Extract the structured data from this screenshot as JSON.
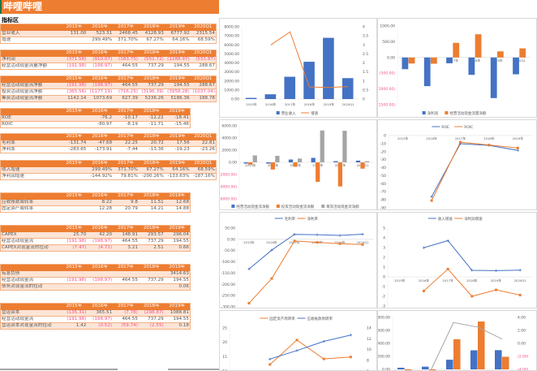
{
  "title": "哔哩哔哩",
  "section": "指标区",
  "colors": {
    "accent": "#ED7D31",
    "blue": "#4472C4",
    "orange": "#ED7D31",
    "gray": "#A5A5A5",
    "negative": "#F0508A"
  },
  "tables": [
    {
      "years": [
        "2015年",
        "2016年",
        "2017年",
        "2018年",
        "2019年",
        "2020Q1"
      ],
      "rows": [
        [
          "营业收入",
          "131.00",
          "523.31",
          "2468.45",
          "4128.93",
          "6777.92",
          "2315.54"
        ],
        [
          "增速",
          "",
          "299.49%",
          "371.70%",
          "67.27%",
          "64.16%",
          "68.59%"
        ]
      ]
    },
    {
      "years": [
        "2015年",
        "2016年",
        "2017年",
        "2018年",
        "2019年",
        "2020Q1"
      ],
      "rows": [
        [
          "净利润",
          "(371.58)",
          "(910.07)",
          "(183.75)",
          "(551.72)",
          "(1288.97)",
          "(533.87)"
        ],
        [
          "经营活动现金流量净额",
          "(191.98)",
          "(198.97)",
          "464.55",
          "737.29",
          "194.55",
          "288.67"
        ]
      ]
    },
    {
      "years": [
        "2015年",
        "2016年",
        "2017年",
        "2018年",
        "2019年",
        "2020Q1"
      ],
      "rows": [
        [
          "经营活动现金流净额",
          "(191.98)",
          "(198.97)",
          "464.55",
          "737.29",
          "194.55",
          "288.67"
        ],
        [
          "投资活动现金流净额",
          "(365.56)",
          "(1177.19)",
          "(716.25)",
          "(3196.39)",
          "(3958.28)",
          "(1037.04)"
        ],
        [
          "筹资活动现金流净额",
          "1142.14",
          "1073.69",
          "627.39",
          "5236.26",
          "5186.36",
          "188.78"
        ]
      ]
    },
    {
      "years": [
        "2015年",
        "2016年",
        "2017年",
        "2018年",
        "2019年"
      ],
      "rows": [
        [
          "ROE",
          "",
          "-76.2",
          "-10.17",
          "-12.22",
          "-18.41"
        ],
        [
          "ROIC",
          "",
          "-80.97",
          "-8.19",
          "-11.71",
          "-15.46"
        ]
      ]
    },
    {
      "years": [
        "2015年",
        "2016年",
        "2017年",
        "2018年",
        "2019年",
        "2020Q1"
      ],
      "rows": [
        [
          "毛利率",
          "-131.74",
          "-47.68",
          "22.25",
          "20.72",
          "17.56",
          "22.81"
        ],
        [
          "净利率",
          "-283.65",
          "-173.91",
          "-7.44",
          "-13.36",
          "-19.23",
          "-23.26"
        ]
      ]
    },
    {
      "years": [
        "2015年",
        "2016年",
        "2017年",
        "2018年",
        "2019年",
        "2020Q1"
      ],
      "rows": [
        [
          "收入增速",
          "",
          "299.49%",
          "371.70%",
          "67.27%",
          "64.16%",
          "68.59%"
        ],
        [
          "净利润增速",
          "",
          "-144.92%",
          "79.81%",
          "-200.26%",
          "-133.63%",
          "-187.16%"
        ]
      ]
    },
    {
      "years": [
        "2015年",
        "2016年",
        "2017年",
        "2018年",
        "2019年"
      ],
      "rows": [
        [
          "应收账款周转率",
          "",
          "8.22",
          "9.8",
          "11.51",
          "12.68"
        ],
        [
          "固定资产周转率",
          "",
          "12.28",
          "20.79",
          "14.21",
          "14.88"
        ]
      ]
    },
    {
      "years": [
        "2015年",
        "2016年",
        "2017年",
        "2018年",
        "2019年"
      ],
      "rows": [
        [
          "CAPEX",
          "25.70",
          "42.20",
          "148.91",
          "293.57",
          "296.04"
        ],
        [
          "经营活动现金流",
          "(191.98)",
          "(198.97)",
          "464.55",
          "737.29",
          "194.55"
        ],
        [
          "CAPEX对现金流的拉动",
          "(7.47)",
          "(4.71)",
          "3.21",
          "2.51",
          "0.66"
        ]
      ]
    },
    {
      "years": [
        "2015年",
        "2016年",
        "2017年",
        "2018年",
        "2019年"
      ],
      "rows": [
        [
          "有息负债",
          "",
          "",
          "",
          "",
          "3414.63"
        ],
        [
          "经营活动现金流",
          "(191.98)",
          "(198.97)",
          "464.55",
          "737.29",
          "194.55"
        ],
        [
          "债务对现金流的拉动",
          "",
          "",
          "",
          "",
          "0.06"
        ]
      ]
    },
    {
      "years": [
        "2015年",
        "2016年",
        "2017年",
        "2018年",
        "2019年"
      ],
      "rows": [
        [
          "营运资本",
          "(135.31)",
          "365.51",
          "(7.78)",
          "(298.87)",
          "1088.81"
        ],
        [
          "经营活动现金流",
          "(191.98)",
          "(198.97)",
          "464.55",
          "737.29",
          "194.55"
        ],
        [
          "营运资本对现金流的拉动",
          "1.42",
          "(0.52)",
          "(59.74)",
          "(2.55)",
          "0.18"
        ]
      ]
    }
  ],
  "chart_data": [
    {
      "type": "bar+line",
      "categories": [
        "2015年",
        "2016年",
        "2017年",
        "2018年",
        "2019年",
        "2020Q1"
      ],
      "ylim": [
        0,
        8000
      ],
      "yticks": [
        "0.00",
        "1000.00",
        "2000.00",
        "3000.00",
        "4000.00",
        "5000.00",
        "6000.00",
        "7000.00",
        "8000.00"
      ],
      "y2lim": [
        0,
        4
      ],
      "y2ticks": [
        "0",
        "0.5",
        "1",
        "1.5",
        "2",
        "2.5",
        "3",
        "3.5",
        "4"
      ],
      "series": [
        {
          "name": "营业收入",
          "kind": "bar",
          "axis": 1,
          "color": "#4472C4",
          "values": [
            131.0,
            523.31,
            2468.45,
            4128.93,
            6777.92,
            2315.54
          ]
        },
        {
          "name": "增速",
          "kind": "line",
          "axis": 2,
          "color": "#ED7D31",
          "values": [
            null,
            2.99,
            3.72,
            0.67,
            0.64,
            0.69
          ]
        }
      ]
    },
    {
      "type": "bar",
      "categories": [
        "2015年",
        "2016年",
        "2017年",
        "2018年",
        "2019年",
        "2020Q1"
      ],
      "ylim": [
        -1500,
        1000
      ],
      "yticks": [
        "(1500.00)",
        "(1000.00)",
        "(500.00)",
        "0.00",
        "500.00",
        "1000.00"
      ],
      "series": [
        {
          "name": "净利润",
          "kind": "bar",
          "color": "#4472C4",
          "values": [
            -371.58,
            -910.07,
            -183.75,
            -551.72,
            -1288.97,
            -533.87
          ]
        },
        {
          "name": "经营活动现金流量净额",
          "kind": "bar",
          "color": "#ED7D31",
          "values": [
            -191.98,
            -198.97,
            464.55,
            737.29,
            194.55,
            288.67
          ]
        }
      ]
    },
    {
      "type": "bar",
      "categories": [
        "2015年",
        "2016年",
        "2017年",
        "2018年",
        "2019年",
        "2020Q1"
      ],
      "ylim": [
        -6000,
        6000
      ],
      "yticks": [
        "(6000.00)",
        "(4000.00)",
        "(2000.00)",
        "0.00",
        "2000.00",
        "4000.00",
        "6000.00"
      ],
      "series": [
        {
          "name": "经营活动现金流净额",
          "kind": "bar",
          "color": "#4472C4",
          "values": [
            -191.98,
            -198.97,
            464.55,
            737.29,
            194.55,
            288.67
          ]
        },
        {
          "name": "投资活动现金流净额",
          "kind": "bar",
          "color": "#ED7D31",
          "values": [
            -365.56,
            -1177.19,
            -716.25,
            -3196.39,
            -3958.28,
            -1037.04
          ]
        },
        {
          "name": "筹资活动现金流净额",
          "kind": "bar",
          "color": "#A5A5A5",
          "values": [
            1142.14,
            1073.69,
            627.39,
            5236.26,
            5186.36,
            188.78
          ]
        }
      ]
    },
    {
      "type": "line",
      "categories": [
        "2015年",
        "2016年",
        "2017年",
        "2018年",
        "2019年"
      ],
      "ylim": [
        -90,
        0
      ],
      "yticks": [
        "-90",
        "-80",
        "-70",
        "-60",
        "-50",
        "-40",
        "-30",
        "-20",
        "-10",
        "0"
      ],
      "series": [
        {
          "name": "ROE",
          "kind": "line",
          "color": "#4472C4",
          "values": [
            null,
            -76.2,
            -10.17,
            -12.22,
            -18.41
          ]
        },
        {
          "name": "ROIC",
          "kind": "line",
          "color": "#ED7D31",
          "values": [
            null,
            -80.97,
            -8.19,
            -11.71,
            -15.46
          ]
        }
      ]
    },
    {
      "type": "line",
      "categories": [
        "2015年",
        "2016年",
        "2017年",
        "2018年",
        "2019年",
        "2020Q1"
      ],
      "ylim": [
        -300,
        50
      ],
      "yticks": [
        "-300.00",
        "-250.00",
        "-200.00",
        "-150.00",
        "-100.00",
        "-50.00",
        "0.00",
        "50.00"
      ],
      "series": [
        {
          "name": "毛利率",
          "kind": "line",
          "color": "#4472C4",
          "values": [
            -131.74,
            -47.68,
            22.25,
            20.72,
            17.56,
            22.81
          ]
        },
        {
          "name": "净利率",
          "kind": "line",
          "color": "#ED7D31",
          "values": [
            -283.65,
            -173.91,
            -7.44,
            -13.36,
            -19.23,
            -23.26
          ]
        }
      ]
    },
    {
      "type": "line",
      "categories": [
        "2015年",
        "2016年",
        "2017年",
        "2018年",
        "2019年",
        "2020Q1"
      ],
      "ylim": [
        -3,
        5
      ],
      "yticks": [
        "-3",
        "-2",
        "-1",
        "0",
        "1",
        "2",
        "3",
        "4",
        "5"
      ],
      "series": [
        {
          "name": "收入增速",
          "kind": "line",
          "color": "#4472C4",
          "values": [
            null,
            2.99,
            3.72,
            0.67,
            0.64,
            0.69
          ]
        },
        {
          "name": "净利润增速",
          "kind": "line",
          "color": "#ED7D31",
          "values": [
            null,
            -1.45,
            0.8,
            -2.0,
            -1.34,
            -1.87
          ]
        }
      ]
    },
    {
      "type": "line",
      "categories": [
        "2015年",
        "2016年",
        "2017年",
        "2018年",
        "2019年"
      ],
      "ylim": [
        10,
        25
      ],
      "yticks": [
        "10",
        "15",
        "20",
        "25"
      ],
      "y2lim": [
        6,
        14
      ],
      "y2ticks": [
        "6",
        "8",
        "10",
        "12",
        "14"
      ],
      "series": [
        {
          "name": "固定资产周转率",
          "kind": "line",
          "axis": 1,
          "color": "#ED7D31",
          "values": [
            null,
            12.28,
            20.79,
            14.21,
            14.88
          ]
        },
        {
          "name": "应收账款周转率",
          "kind": "line",
          "axis": 2,
          "color": "#4472C4",
          "values": [
            null,
            8.22,
            9.8,
            11.51,
            12.68
          ]
        }
      ]
    },
    {
      "type": "bar+line",
      "categories": [
        "2015年",
        "2016年",
        "2017年",
        "2018年",
        "2019年"
      ],
      "ylim": [
        0,
        800
      ],
      "yticks": [
        "0.00",
        "200.00",
        "400.00",
        "600.00",
        "800.00"
      ],
      "y2lim": [
        -4,
        4
      ],
      "y2ticks": [
        "(4.00)",
        "(2.00)",
        "0.00",
        "2.00",
        "4.00"
      ],
      "series": [
        {
          "name": "CAPEX",
          "kind": "bar",
          "axis": 1,
          "color": "#4472C4",
          "values": [
            25.7,
            42.2,
            148.91,
            293.57,
            296.04
          ]
        },
        {
          "name": "经营活动现金流",
          "kind": "bar",
          "axis": 1,
          "color": "#ED7D31",
          "values": [
            -191.98,
            -198.97,
            464.55,
            737.29,
            194.55
          ]
        },
        {
          "name": "CAPEX对现金流的拉动",
          "kind": "line",
          "axis": 2,
          "color": "#A5A5A5",
          "values": [
            -7.47,
            -4.71,
            3.21,
            2.51,
            0.66
          ]
        }
      ]
    }
  ]
}
